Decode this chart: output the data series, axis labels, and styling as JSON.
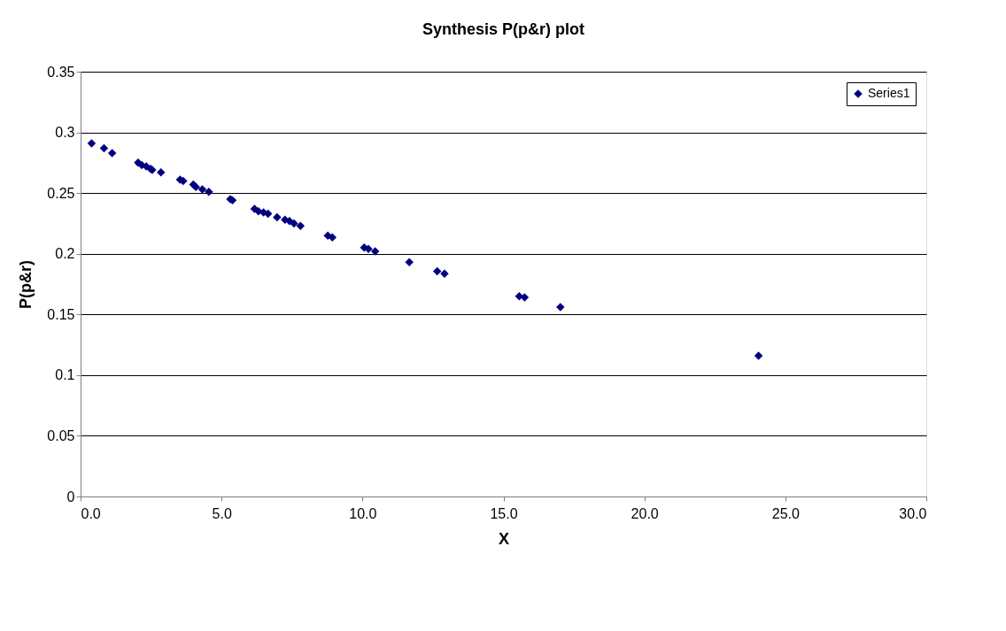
{
  "chart_data": {
    "type": "scatter",
    "title": "Synthesis P(p&r) plot",
    "xlabel": "X",
    "ylabel": "P(p&r)",
    "x": [
      0.39,
      0.83,
      1.12,
      2.04,
      2.17,
      2.33,
      2.48,
      2.54,
      2.85,
      3.53,
      3.64,
      4.0,
      4.09,
      4.32,
      4.55,
      5.31,
      5.39,
      6.17,
      6.31,
      6.49,
      6.65,
      6.97,
      7.25,
      7.41,
      7.57,
      7.8,
      8.77,
      8.93,
      10.06,
      10.21,
      10.45,
      11.66,
      12.65,
      12.91,
      15.56,
      15.75,
      17.02,
      24.05
    ],
    "series": [
      {
        "name": "Series1",
        "color": "#000080",
        "values": [
          0.291,
          0.287,
          0.283,
          0.275,
          0.273,
          0.272,
          0.27,
          0.269,
          0.267,
          0.261,
          0.26,
          0.257,
          0.255,
          0.253,
          0.251,
          0.245,
          0.244,
          0.237,
          0.235,
          0.234,
          0.233,
          0.23,
          0.228,
          0.227,
          0.225,
          0.223,
          0.215,
          0.2135,
          0.205,
          0.204,
          0.202,
          0.193,
          0.1855,
          0.1835,
          0.165,
          0.164,
          0.156,
          0.116
        ]
      }
    ],
    "xlim": [
      0,
      30
    ],
    "xticks": [
      {
        "value": 0,
        "label": "0.0"
      },
      {
        "value": 5,
        "label": "5.0"
      },
      {
        "value": 10,
        "label": "10.0"
      },
      {
        "value": 15,
        "label": "15.0"
      },
      {
        "value": 20,
        "label": "20.0"
      },
      {
        "value": 25,
        "label": "25.0"
      },
      {
        "value": 30,
        "label": "30.0"
      }
    ],
    "ylim": [
      0,
      0.35
    ],
    "yticks": [
      0,
      0.05,
      0.1,
      0.15,
      0.2,
      0.25,
      0.3,
      0.35
    ],
    "grid": "y",
    "legend": "top right",
    "marker": "diamond"
  }
}
